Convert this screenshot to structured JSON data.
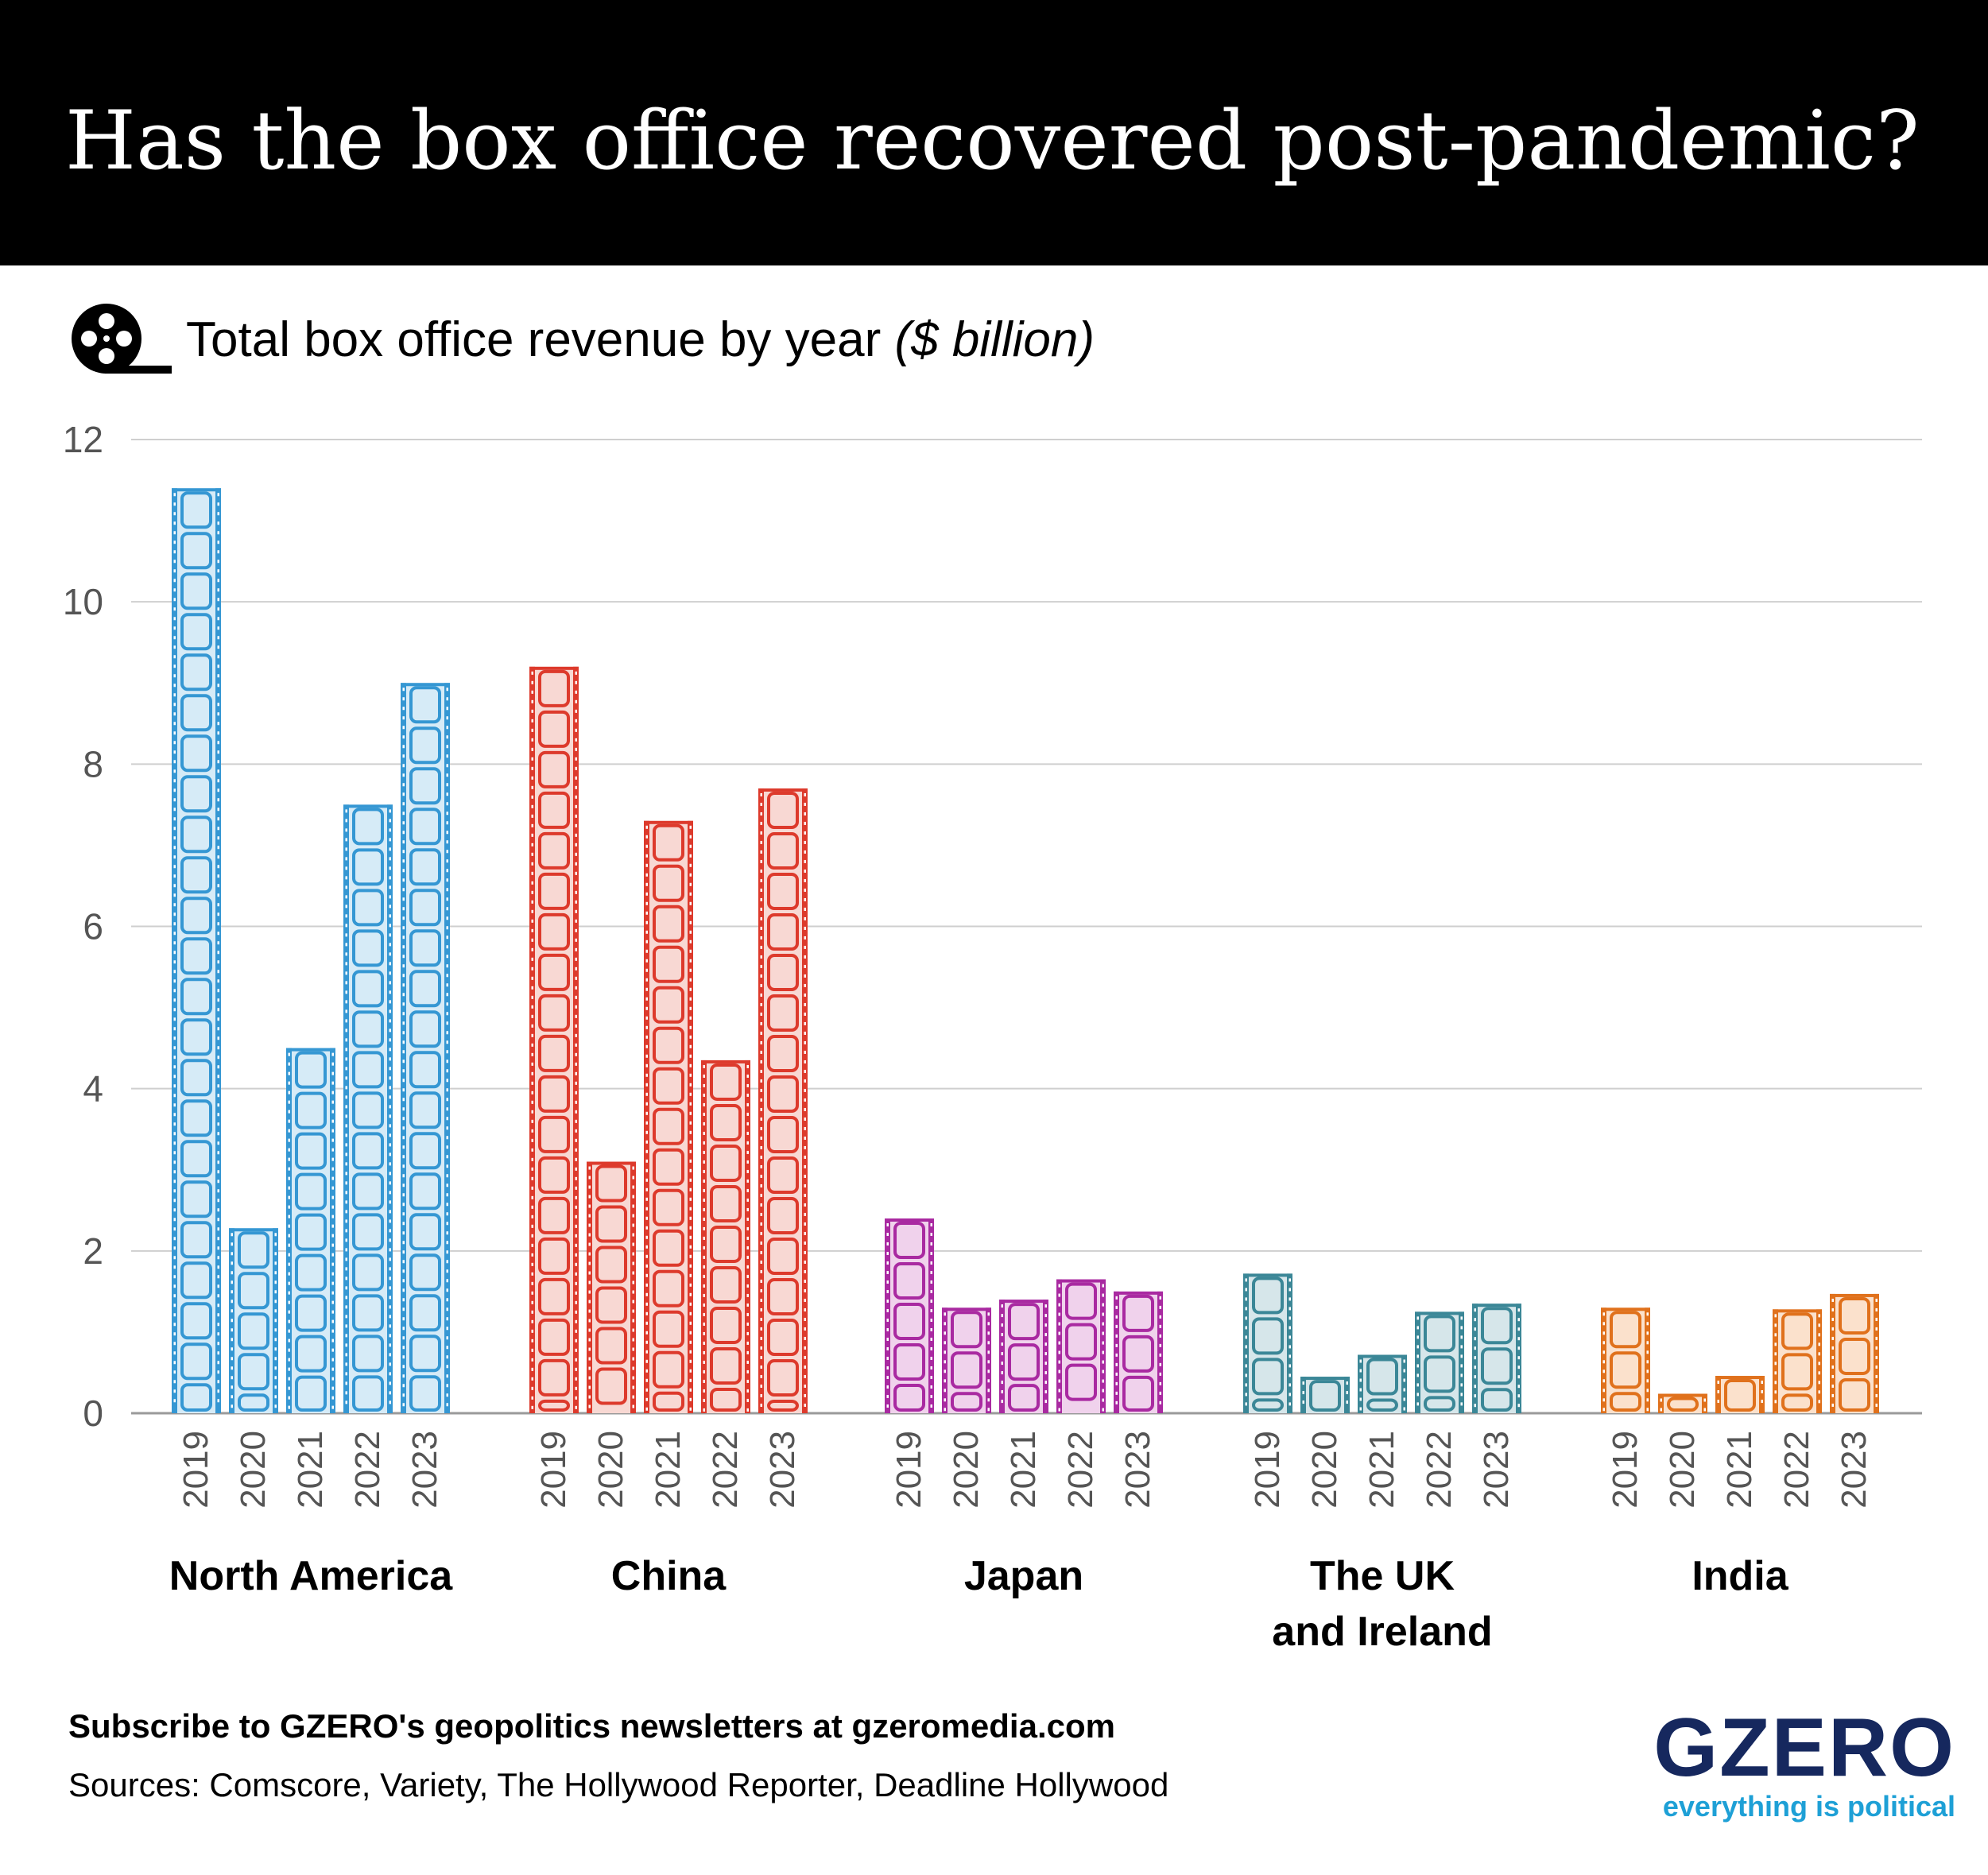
{
  "header": {
    "title": "Has the box office recovered post-pandemic?"
  },
  "subtitle": {
    "text": "Total box office revenue by year ",
    "unit": "($ billion)",
    "icon": "film-reel-icon"
  },
  "chart_data": {
    "type": "bar",
    "ylim": [
      0,
      12
    ],
    "yticks": [
      0,
      2,
      4,
      6,
      8,
      10,
      12
    ],
    "grid": true,
    "categories": [
      "2019",
      "2020",
      "2021",
      "2022",
      "2023"
    ],
    "groups": [
      {
        "name": "North America",
        "lines": [
          "North America"
        ],
        "color": "#3597d3",
        "fill": "#d6ebf7",
        "values": [
          11.4,
          2.28,
          4.5,
          7.5,
          9.0
        ]
      },
      {
        "name": "China",
        "lines": [
          "China"
        ],
        "color": "#dd3a2c",
        "fill": "#f8d8d3",
        "values": [
          9.2,
          3.1,
          7.3,
          4.35,
          7.7
        ]
      },
      {
        "name": "Japan",
        "lines": [
          "Japan"
        ],
        "color": "#a92aa1",
        "fill": "#f0d2ec",
        "values": [
          2.4,
          1.3,
          1.4,
          1.65,
          1.5
        ]
      },
      {
        "name": "The UK and Ireland",
        "lines": [
          "The UK",
          "and Ireland"
        ],
        "color": "#3b8797",
        "fill": "#d6e6ea",
        "values": [
          1.72,
          0.45,
          0.72,
          1.25,
          1.35
        ]
      },
      {
        "name": "India",
        "lines": [
          "India"
        ],
        "color": "#e0711c",
        "fill": "#fbe1cc",
        "values": [
          1.3,
          0.24,
          0.46,
          1.28,
          1.47
        ]
      }
    ]
  },
  "footer": {
    "cta": "Subscribe to GZERO's geopolitics newsletters at gzeromedia.com",
    "sources": "Sources: Comscore, Variety, The Hollywood Reporter, Deadline Hollywood"
  },
  "logo": {
    "word": "GZERO",
    "tagline": "everything is political",
    "color": "#16285e",
    "tag_color": "#1ea0d6"
  }
}
